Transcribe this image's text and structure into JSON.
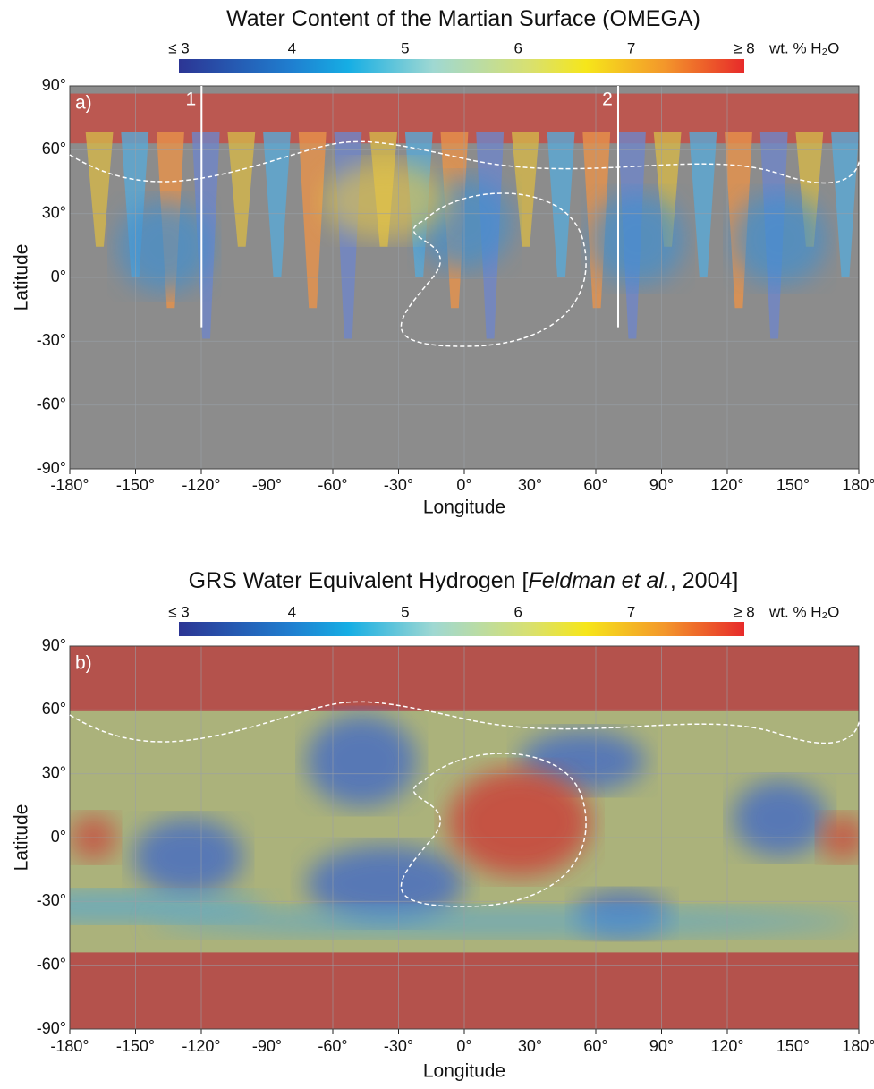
{
  "panels": [
    {
      "title": [
        "Water Content of the Martian Surface (OMEGA)"
      ],
      "colorbar": {
        "ticks": [
          {
            "value": 3,
            "label": "≤ 3"
          },
          {
            "value": 4,
            "label": "4"
          },
          {
            "value": 5,
            "label": "5"
          },
          {
            "value": 6,
            "label": "6"
          },
          {
            "value": 7,
            "label": "7"
          },
          {
            "value": 8,
            "label": "≥ 8"
          }
        ],
        "unit": "wt. % H₂O"
      },
      "label": "a)",
      "markers": [
        "1",
        "2"
      ],
      "xticks": [
        {
          "value": -180,
          "label": "-180°"
        },
        {
          "value": -150,
          "label": "-150°"
        },
        {
          "value": -120,
          "label": "-120°"
        },
        {
          "value": -90,
          "label": "-90°"
        },
        {
          "value": -60,
          "label": "-60°"
        },
        {
          "value": -30,
          "label": "-30°"
        },
        {
          "value": 0,
          "label": "0°"
        },
        {
          "value": 30,
          "label": "30°"
        },
        {
          "value": 60,
          "label": "60°"
        },
        {
          "value": 90,
          "label": "90°"
        },
        {
          "value": 120,
          "label": "120°"
        },
        {
          "value": 150,
          "label": "150°"
        },
        {
          "value": 180,
          "label": "180°"
        }
      ],
      "yticks": [
        {
          "value": 90,
          "label": "90°"
        },
        {
          "value": 60,
          "label": "60°"
        },
        {
          "value": 30,
          "label": "30°"
        },
        {
          "value": 0,
          "label": "0°"
        },
        {
          "value": -30,
          "label": "-30°"
        },
        {
          "value": -60,
          "label": "-60°"
        },
        {
          "value": -90,
          "label": "-90°"
        }
      ],
      "xlabel": "Longitude",
      "ylabel": "Latitude"
    },
    {
      "title": [
        "GRS Water Equivalent Hydrogen [",
        "Feldman et al.",
        ", 2004]"
      ],
      "colorbar": {
        "ticks": [
          {
            "value": 3,
            "label": "≤ 3"
          },
          {
            "value": 4,
            "label": "4"
          },
          {
            "value": 5,
            "label": "5"
          },
          {
            "value": 6,
            "label": "6"
          },
          {
            "value": 7,
            "label": "7"
          },
          {
            "value": 8,
            "label": "≥ 8"
          }
        ],
        "unit": "wt. % H₂O"
      },
      "label": "b)",
      "markers": [],
      "xticks": [
        {
          "value": -180,
          "label": "-180°"
        },
        {
          "value": -150,
          "label": "-150°"
        },
        {
          "value": -120,
          "label": "-120°"
        },
        {
          "value": -90,
          "label": "-90°"
        },
        {
          "value": -60,
          "label": "-60°"
        },
        {
          "value": -30,
          "label": "-30°"
        },
        {
          "value": 0,
          "label": "0°"
        },
        {
          "value": 30,
          "label": "30°"
        },
        {
          "value": 60,
          "label": "60°"
        },
        {
          "value": 90,
          "label": "90°"
        },
        {
          "value": 120,
          "label": "120°"
        },
        {
          "value": 150,
          "label": "150°"
        },
        {
          "value": 180,
          "label": "180°"
        }
      ],
      "yticks": [
        {
          "value": 90,
          "label": "90°"
        },
        {
          "value": 60,
          "label": "60°"
        },
        {
          "value": 30,
          "label": "30°"
        },
        {
          "value": 0,
          "label": "0°"
        },
        {
          "value": -30,
          "label": "-30°"
        },
        {
          "value": -60,
          "label": "-60°"
        },
        {
          "value": -90,
          "label": "-90°"
        }
      ],
      "xlabel": "Longitude",
      "ylabel": "Latitude"
    }
  ]
}
